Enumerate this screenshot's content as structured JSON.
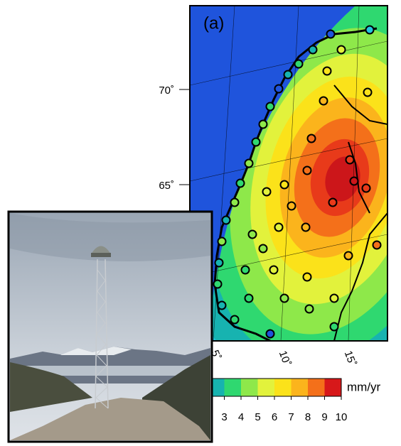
{
  "panel_label": "(a)",
  "latitude_labels": [
    "70˚",
    "65˚"
  ],
  "longitude_labels": [
    "5˚",
    "10˚",
    "15˚"
  ],
  "colorbar": {
    "unit": "mm/yr",
    "ticks": [
      3,
      4,
      5,
      6,
      7,
      8,
      9,
      10
    ],
    "range": [
      2,
      10
    ],
    "colors": [
      "#17b3b0",
      "#2fd870",
      "#8ee84a",
      "#e2f23c",
      "#fbe21a",
      "#fbb41c",
      "#f4701a",
      "#d7181a"
    ]
  }
}
